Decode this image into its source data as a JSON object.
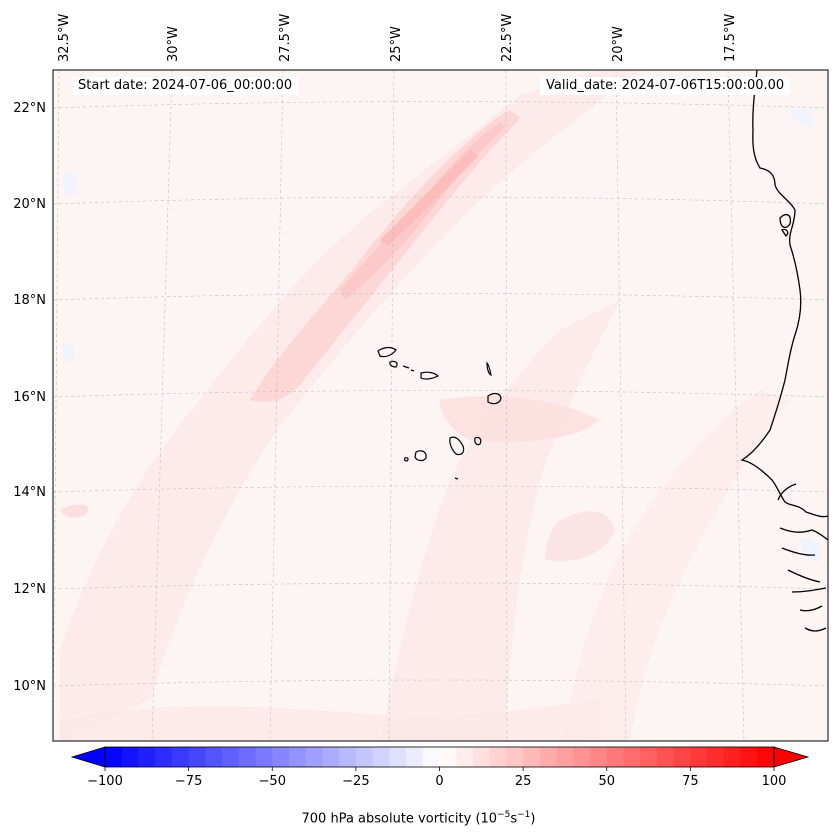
{
  "map": {
    "start_date": "Start date: 2024-07-06_00:00:00",
    "valid_date": "Valid_date: 2024-07-06T15:00:00.00",
    "lon_labels": [
      "32.5°W",
      "30°W",
      "27.5°W",
      "25°W",
      "22.5°W",
      "20°W",
      "17.5°W"
    ],
    "lat_labels": [
      "22°N",
      "20°N",
      "18°N",
      "16°N",
      "14°N",
      "12°N",
      "10°N"
    ],
    "land_features": [
      "west-africa-coastline",
      "cape-verde-islands"
    ]
  },
  "colorbar": {
    "title_prefix": "700 hPa absolute vorticity (10",
    "title_exp1": "−5",
    "title_mid": "s",
    "title_exp2": "−1",
    "title_suffix": ")",
    "tick_labels": [
      "−100",
      "−75",
      "−50",
      "−25",
      "0",
      "25",
      "50",
      "75",
      "100"
    ],
    "min": -100,
    "max": 100,
    "levels": 41,
    "colormap": "bwr"
  }
}
